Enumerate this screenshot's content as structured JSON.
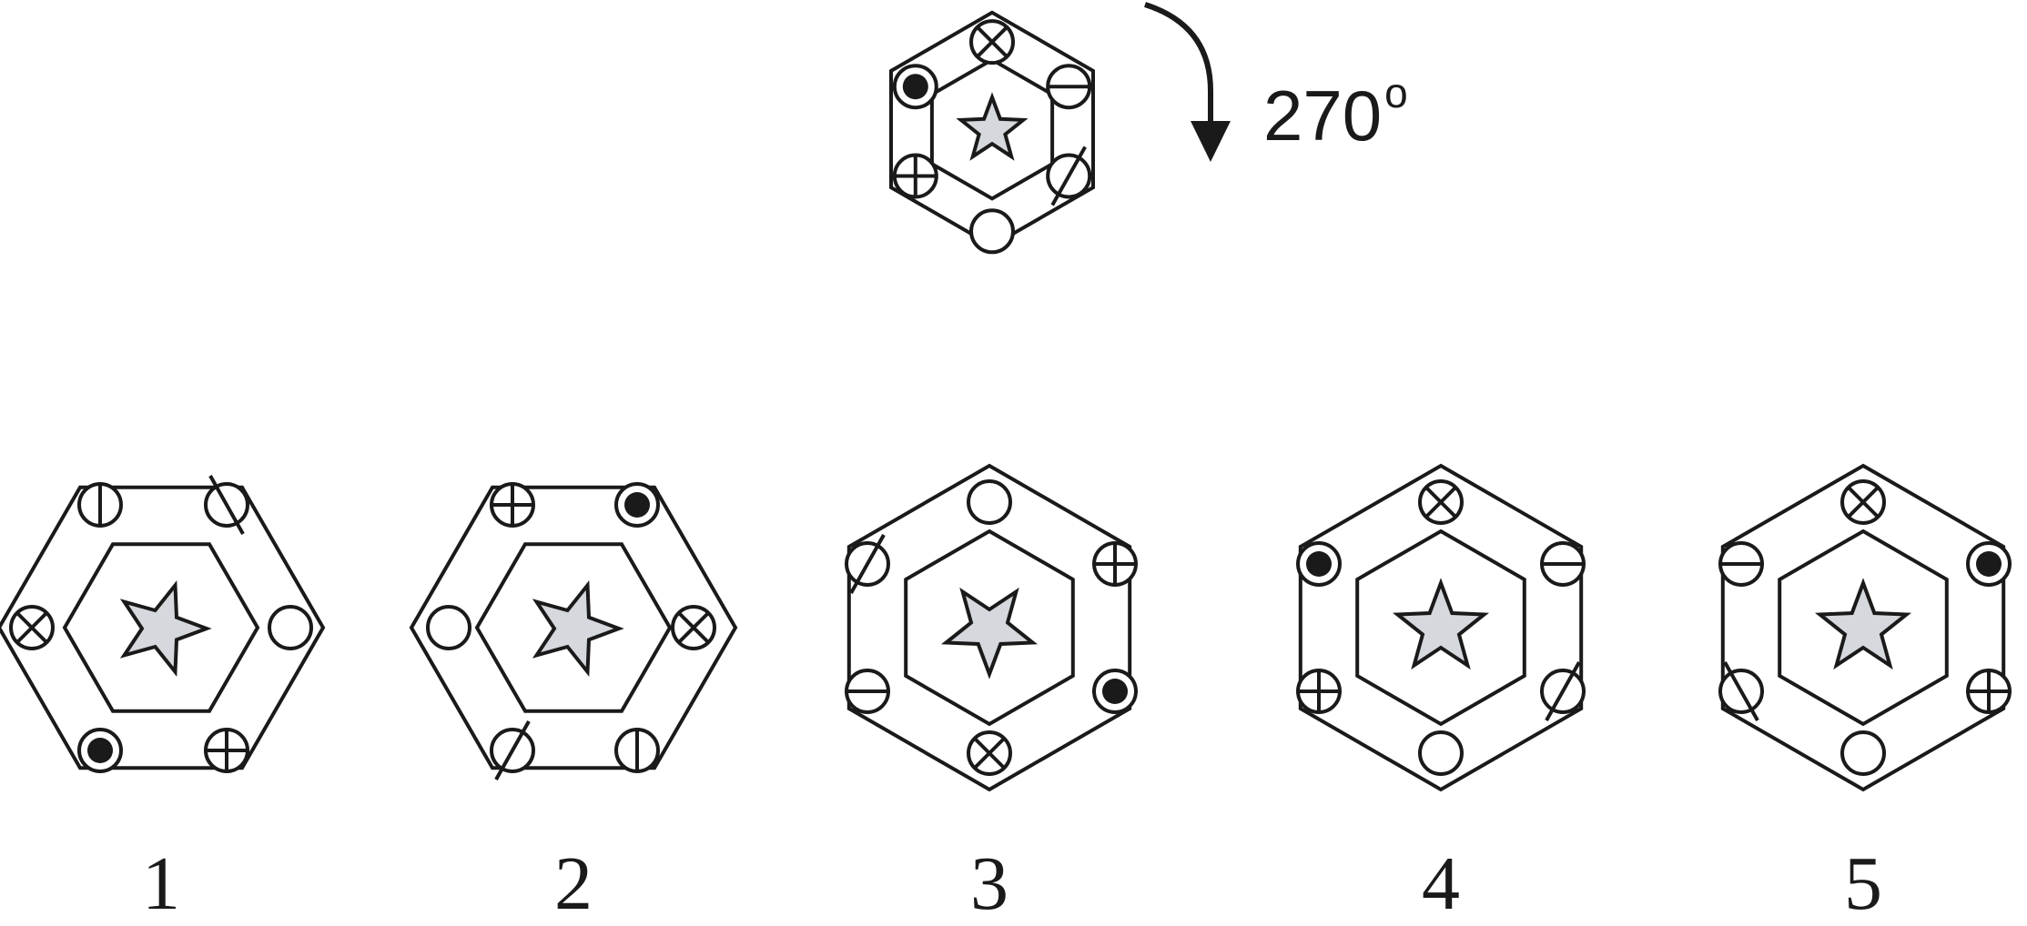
{
  "rotation": {
    "value": "270",
    "unit": "o"
  },
  "options": [
    {
      "label": "1"
    },
    {
      "label": "2"
    },
    {
      "label": "3"
    },
    {
      "label": "4"
    },
    {
      "label": "5"
    }
  ]
}
